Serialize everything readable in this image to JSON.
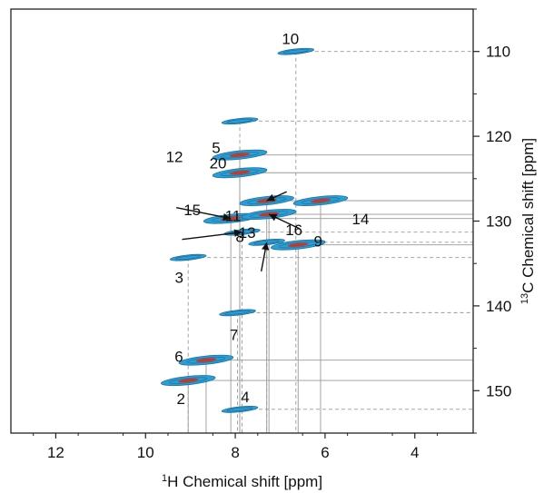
{
  "chart_data": {
    "type": "scatter",
    "title": "",
    "xlabel_sup": "1",
    "xlabel": "H Chemical shift [ppm]",
    "ylabel_sup": "13",
    "ylabel": "C Chemical shift [ppm]",
    "xlim": [
      13.0,
      2.7
    ],
    "ylim": [
      105.0,
      155.0
    ],
    "xticks": [
      12,
      10,
      8,
      6,
      4
    ],
    "yticks": [
      110,
      120,
      130,
      140,
      150
    ],
    "grid": false,
    "colors": {
      "contour": "#2a9fd6",
      "contour_dark": "#1e6f9e",
      "peak_core": "#c0392b",
      "guide": "#999999",
      "axis": "#222222"
    },
    "peaks": [
      {
        "id": "1",
        "h": 9.05,
        "c": 134.3,
        "label": "3",
        "core": false
      },
      {
        "id": "2",
        "h": 9.05,
        "c": 148.8,
        "label": "2",
        "core": true
      },
      {
        "id": "3",
        "h": 8.65,
        "c": 146.4,
        "label": "6",
        "core": true
      },
      {
        "id": "4",
        "h": 7.95,
        "c": 140.8,
        "label": "7",
        "core": false
      },
      {
        "id": "5",
        "h": 7.9,
        "c": 152.2,
        "label": "4",
        "core": false
      },
      {
        "id": "6",
        "h": 6.65,
        "c": 110.0,
        "label": "10",
        "core": false
      },
      {
        "id": "7",
        "h": 7.9,
        "c": 122.2,
        "label": "5",
        "core": true
      },
      {
        "id": "8",
        "h": 7.9,
        "c": 124.3,
        "label": "12",
        "core": true
      },
      {
        "id": "9",
        "h": 8.1,
        "c": 129.7,
        "label": "8",
        "core": true
      },
      {
        "id": "10",
        "h": 7.85,
        "c": 131.3,
        "label": "11",
        "core": false
      },
      {
        "id": "11",
        "h": 7.3,
        "c": 127.6,
        "label": "15",
        "core": true
      },
      {
        "id": "12",
        "h": 7.25,
        "c": 129.2,
        "label": "13",
        "core": true
      },
      {
        "id": "13",
        "h": 6.1,
        "c": 127.6,
        "label": "14",
        "core": true
      },
      {
        "id": "14",
        "h": 6.6,
        "c": 132.8,
        "label": "9",
        "core": true
      },
      {
        "id": "15",
        "h": 7.3,
        "c": 132.5,
        "label": "16",
        "core": false
      },
      {
        "id": "16",
        "h": 7.9,
        "c": 118.2,
        "label": "20",
        "core": false
      }
    ]
  }
}
